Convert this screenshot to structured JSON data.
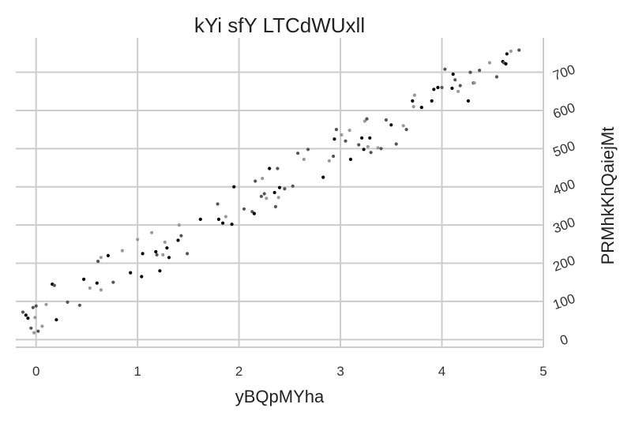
{
  "chart_data": {
    "type": "scatter",
    "title": "kYi sfY LTCdWUxll",
    "xlabel": "yBQpMYha",
    "ylabel": "PRMhkKhQaiejMt",
    "xlim": [
      -0.2,
      5.0
    ],
    "ylim": [
      -20,
      790
    ],
    "x_ticks": [
      0,
      1,
      2,
      3,
      4,
      5
    ],
    "y_ticks": [
      0,
      100,
      200,
      300,
      400,
      500,
      600,
      700
    ],
    "y_axis_side": "right",
    "grid": true,
    "marker_colors": [
      "#000000",
      "#555555",
      "#999999"
    ],
    "points": [
      [
        -0.13,
        72,
        1
      ],
      [
        -0.1,
        64,
        0
      ],
      [
        -0.08,
        56,
        0
      ],
      [
        -0.05,
        30,
        1
      ],
      [
        -0.03,
        84,
        1
      ],
      [
        -0.02,
        18,
        2
      ],
      [
        -0.01,
        58,
        2
      ],
      [
        0.0,
        88,
        1
      ],
      [
        0.02,
        22,
        1
      ],
      [
        0.06,
        35,
        2
      ],
      [
        0.1,
        92,
        2
      ],
      [
        0.16,
        145,
        0
      ],
      [
        0.18,
        142,
        1
      ],
      [
        0.2,
        52,
        0
      ],
      [
        0.31,
        98,
        1
      ],
      [
        0.43,
        90,
        1
      ],
      [
        0.47,
        158,
        0
      ],
      [
        0.53,
        135,
        2
      ],
      [
        0.6,
        148,
        0
      ],
      [
        0.61,
        205,
        1
      ],
      [
        0.64,
        215,
        2
      ],
      [
        0.64,
        130,
        2
      ],
      [
        0.71,
        220,
        0
      ],
      [
        0.76,
        150,
        1
      ],
      [
        0.85,
        233,
        2
      ],
      [
        0.93,
        175,
        0
      ],
      [
        1.0,
        262,
        2
      ],
      [
        1.04,
        165,
        0
      ],
      [
        1.05,
        225,
        0
      ],
      [
        1.14,
        280,
        2
      ],
      [
        1.18,
        230,
        0
      ],
      [
        1.19,
        222,
        1
      ],
      [
        1.22,
        180,
        0
      ],
      [
        1.25,
        222,
        2
      ],
      [
        1.27,
        255,
        2
      ],
      [
        1.29,
        240,
        0
      ],
      [
        1.31,
        215,
        0
      ],
      [
        1.4,
        260,
        0
      ],
      [
        1.41,
        300,
        2
      ],
      [
        1.43,
        272,
        1
      ],
      [
        1.49,
        225,
        1
      ],
      [
        1.62,
        315,
        0
      ],
      [
        1.79,
        355,
        1
      ],
      [
        1.8,
        315,
        0
      ],
      [
        1.84,
        305,
        0
      ],
      [
        1.87,
        322,
        2
      ],
      [
        1.93,
        302,
        0
      ],
      [
        1.95,
        400,
        0
      ],
      [
        2.05,
        342,
        1
      ],
      [
        2.13,
        335,
        1
      ],
      [
        2.15,
        330,
        0
      ],
      [
        2.16,
        415,
        1
      ],
      [
        2.22,
        375,
        1
      ],
      [
        2.23,
        422,
        2
      ],
      [
        2.25,
        382,
        1
      ],
      [
        2.27,
        370,
        2
      ],
      [
        2.3,
        448,
        0
      ],
      [
        2.35,
        385,
        0
      ],
      [
        2.36,
        348,
        1
      ],
      [
        2.38,
        448,
        1
      ],
      [
        2.39,
        372,
        2
      ],
      [
        2.4,
        398,
        0
      ],
      [
        2.45,
        395,
        1
      ],
      [
        2.53,
        402,
        1
      ],
      [
        2.58,
        488,
        1
      ],
      [
        2.64,
        472,
        2
      ],
      [
        2.68,
        498,
        1
      ],
      [
        2.83,
        425,
        0
      ],
      [
        2.89,
        468,
        2
      ],
      [
        2.93,
        480,
        1
      ],
      [
        2.94,
        525,
        0
      ],
      [
        2.96,
        550,
        1
      ],
      [
        3.01,
        536,
        2
      ],
      [
        3.05,
        520,
        1
      ],
      [
        3.09,
        548,
        2
      ],
      [
        3.1,
        472,
        0
      ],
      [
        3.18,
        510,
        1
      ],
      [
        3.21,
        528,
        0
      ],
      [
        3.23,
        498,
        0
      ],
      [
        3.24,
        572,
        2
      ],
      [
        3.26,
        578,
        1
      ],
      [
        3.27,
        505,
        2
      ],
      [
        3.29,
        528,
        0
      ],
      [
        3.3,
        490,
        1
      ],
      [
        3.37,
        502,
        2
      ],
      [
        3.4,
        500,
        1
      ],
      [
        3.45,
        575,
        1
      ],
      [
        3.5,
        562,
        0
      ],
      [
        3.55,
        512,
        1
      ],
      [
        3.62,
        560,
        2
      ],
      [
        3.65,
        550,
        1
      ],
      [
        3.71,
        625,
        0
      ],
      [
        3.72,
        610,
        2
      ],
      [
        3.73,
        640,
        2
      ],
      [
        3.8,
        608,
        0
      ],
      [
        3.9,
        625,
        0
      ],
      [
        3.92,
        655,
        0
      ],
      [
        3.96,
        660,
        0
      ],
      [
        4.0,
        660,
        1
      ],
      [
        4.03,
        708,
        1
      ],
      [
        4.1,
        658,
        0
      ],
      [
        4.11,
        695,
        0
      ],
      [
        4.13,
        680,
        1
      ],
      [
        4.16,
        650,
        2
      ],
      [
        4.18,
        665,
        1
      ],
      [
        4.26,
        625,
        0
      ],
      [
        4.28,
        700,
        1
      ],
      [
        4.31,
        672,
        1
      ],
      [
        4.32,
        672,
        2
      ],
      [
        4.37,
        705,
        1
      ],
      [
        4.47,
        725,
        2
      ],
      [
        4.54,
        688,
        1
      ],
      [
        4.6,
        728,
        0
      ],
      [
        4.61,
        725,
        1
      ],
      [
        4.63,
        722,
        0
      ],
      [
        4.64,
        748,
        0
      ],
      [
        4.68,
        755,
        2
      ],
      [
        4.76,
        758,
        1
      ]
    ]
  }
}
